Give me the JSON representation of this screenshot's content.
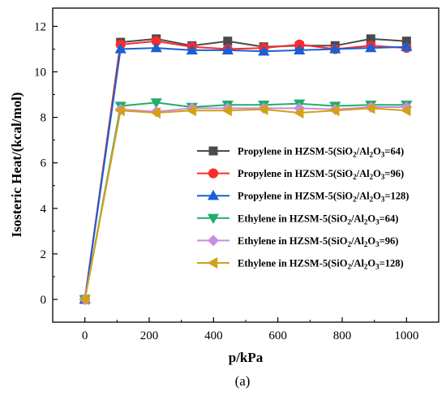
{
  "chart_data": {
    "type": "line",
    "xlabel": "p/kPa",
    "ylabel": "Isosteric Heat/(kcal/mol)",
    "panel_label": "(a)",
    "xlim": [
      -100,
      1100
    ],
    "ylim": [
      -1,
      12.8
    ],
    "xticks": [
      "0",
      "200",
      "400",
      "600",
      "800",
      "1000"
    ],
    "xtick_values": [
      0,
      200,
      400,
      600,
      800,
      1000
    ],
    "yticks": [
      "0",
      "2",
      "4",
      "6",
      "8",
      "10",
      "12"
    ],
    "ytick_values": [
      0,
      2,
      4,
      6,
      8,
      10,
      12
    ],
    "grid": false,
    "legend_position": "center-right",
    "x": [
      0,
      111,
      222,
      333,
      444,
      556,
      667,
      778,
      889,
      1000
    ],
    "series": [
      {
        "name": "Propylene in HZSM-5(SiO2/Al2O3=64)",
        "legend_parts": [
          "Propylene in HZSM-5(SiO",
          "2",
          "/Al",
          "2",
          "O",
          "3",
          "=64)"
        ],
        "color": "#4a4a4a",
        "marker": "square",
        "values": [
          0,
          11.3,
          11.45,
          11.15,
          11.35,
          11.1,
          11.15,
          11.15,
          11.45,
          11.35
        ]
      },
      {
        "name": "Propylene in HZSM-5(SiO2/Al2O3=96)",
        "legend_parts": [
          "Propylene in HZSM-5(SiO",
          "2",
          "/Al",
          "2",
          "O",
          "3",
          "=96)"
        ],
        "color": "#ff2a2a",
        "marker": "circle",
        "values": [
          0,
          11.2,
          11.35,
          11.1,
          11.0,
          11.05,
          11.2,
          11.0,
          11.15,
          11.05
        ]
      },
      {
        "name": "Propylene in HZSM-5(SiO2/Al2O3=128)",
        "legend_parts": [
          "Propylene in HZSM-5(SiO",
          "2",
          "/Al",
          "2",
          "O",
          "3",
          "=128)"
        ],
        "color": "#1a5fd6",
        "marker": "triangle-up",
        "values": [
          0,
          11.0,
          11.05,
          10.95,
          10.95,
          10.9,
          10.95,
          11.0,
          11.05,
          11.1
        ]
      },
      {
        "name": "Ethylene in HZSM-5(SiO2/Al2O3=64)",
        "legend_parts": [
          "Ethylene in HZSM-5(SiO",
          "2",
          "/Al",
          "2",
          "O",
          "3",
          "=64)"
        ],
        "color": "#1fae6a",
        "marker": "triangle-down",
        "values": [
          0,
          8.5,
          8.65,
          8.45,
          8.55,
          8.55,
          8.6,
          8.5,
          8.55,
          8.55
        ]
      },
      {
        "name": "Ethylene in HZSM-5(SiO2/Al2O3=96)",
        "legend_parts": [
          "Ethylene in HZSM-5(SiO",
          "2",
          "/Al",
          "2",
          "O",
          "3",
          "=96)"
        ],
        "color": "#c98ce0",
        "marker": "diamond",
        "values": [
          0,
          8.35,
          8.25,
          8.4,
          8.4,
          8.4,
          8.4,
          8.35,
          8.45,
          8.45
        ]
      },
      {
        "name": "Ethylene in HZSM-5(SiO2/Al2O3=128)",
        "legend_parts": [
          "Ethylene in HZSM-5(SiO",
          "2",
          "/Al",
          "2",
          "O",
          "3",
          "=128)"
        ],
        "color": "#d4a017",
        "marker": "triangle-left",
        "values": [
          0,
          8.3,
          8.2,
          8.3,
          8.3,
          8.35,
          8.2,
          8.3,
          8.4,
          8.3
        ]
      }
    ]
  }
}
